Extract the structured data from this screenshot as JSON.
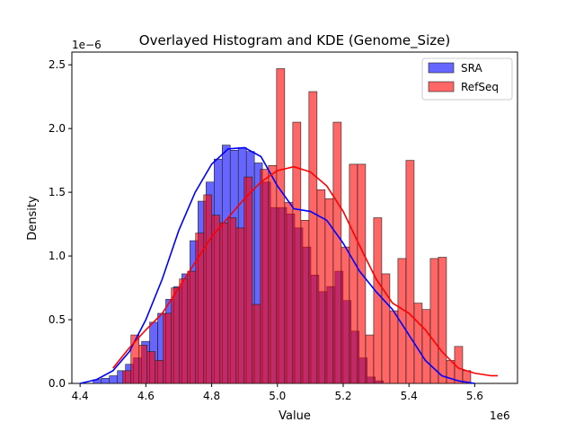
{
  "chart_data": {
    "type": "histogram",
    "title": "Overlayed Histogram and KDE (Genome_Size)",
    "xlabel": "Value",
    "ylabel": "Density",
    "x_offset_label": "1e6",
    "y_offset_label": "1e−6",
    "xlim": [
      4.375,
      5.73
    ],
    "ylim": [
      0,
      2.6
    ],
    "x_unit_scale": 1000000,
    "y_unit_scale": 1e-06,
    "xticks": [
      4.4,
      4.6,
      4.8,
      5.0,
      5.2,
      5.4,
      5.6
    ],
    "xtick_labels": [
      "4.4",
      "4.6",
      "4.8",
      "5.0",
      "5.2",
      "5.4",
      "5.6"
    ],
    "yticks": [
      0.0,
      0.5,
      1.0,
      1.5,
      2.0,
      2.5
    ],
    "ytick_labels": [
      "0.0",
      "0.5",
      "1.0",
      "1.5",
      "2.0",
      "2.5"
    ],
    "legend_position": "top-right",
    "grid": false,
    "series": [
      {
        "name": "SRA",
        "color": "#0000ff",
        "bin_start": 4.44,
        "bin_width": 0.0245,
        "values": [
          0.03,
          0.04,
          0.06,
          0.1,
          0.15,
          0.2,
          0.33,
          0.48,
          0.55,
          0.66,
          0.76,
          0.86,
          1.12,
          1.43,
          1.58,
          1.76,
          1.87,
          1.83,
          1.85,
          1.82,
          1.73,
          1.58,
          1.38,
          1.38,
          1.33,
          1.22,
          1.07,
          0.85,
          0.72,
          0.76,
          0.88,
          0.65,
          0.41,
          0.2,
          0.05,
          0.02
        ],
        "kde_x": [
          4.4,
          4.45,
          4.5,
          4.55,
          4.6,
          4.65,
          4.7,
          4.75,
          4.8,
          4.85,
          4.9,
          4.95,
          5.0,
          5.05,
          5.1,
          5.15,
          5.2,
          5.25,
          5.3,
          5.35,
          5.4,
          5.45,
          5.5,
          5.55,
          5.6
        ],
        "kde_y": [
          0.0,
          0.03,
          0.1,
          0.25,
          0.5,
          0.82,
          1.2,
          1.5,
          1.72,
          1.84,
          1.85,
          1.78,
          1.55,
          1.37,
          1.35,
          1.28,
          1.1,
          0.88,
          0.72,
          0.58,
          0.38,
          0.18,
          0.06,
          0.02,
          0.0
        ]
      },
      {
        "name": "RefSeq",
        "color": "#ff0000",
        "bin_start": 4.53,
        "bin_width": 0.0246,
        "values": [
          0.1,
          0.38,
          0.3,
          0.25,
          0.18,
          0.55,
          0.75,
          0.82,
          0.88,
          1.18,
          1.48,
          1.32,
          1.26,
          1.3,
          1.22,
          1.62,
          0.62,
          1.68,
          1.71,
          2.47,
          1.42,
          2.05,
          1.28,
          2.29,
          1.52,
          1.45,
          2.05,
          1.07,
          1.72,
          1.72,
          0.38,
          1.3,
          0.86,
          0.57,
          0.98,
          1.75,
          0.63,
          0.58,
          0.98,
          0.99,
          0.18,
          0.29,
          0.1
        ],
        "kde_x": [
          4.5,
          4.55,
          4.6,
          4.65,
          4.7,
          4.75,
          4.8,
          4.85,
          4.9,
          4.95,
          5.0,
          5.05,
          5.1,
          5.15,
          5.2,
          5.25,
          5.3,
          5.35,
          5.4,
          5.45,
          5.5,
          5.55,
          5.6,
          5.65,
          5.67
        ],
        "kde_y": [
          0.12,
          0.28,
          0.42,
          0.55,
          0.75,
          0.95,
          1.15,
          1.3,
          1.45,
          1.58,
          1.67,
          1.7,
          1.66,
          1.55,
          1.35,
          1.08,
          0.82,
          0.63,
          0.55,
          0.42,
          0.25,
          0.12,
          0.08,
          0.06,
          0.06
        ]
      }
    ]
  }
}
